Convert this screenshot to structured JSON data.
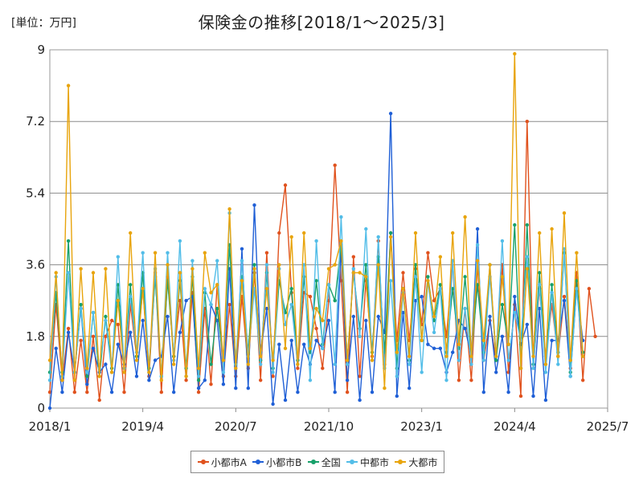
{
  "chart_data": {
    "type": "line",
    "title": "保険金の推移[2018/1～2025/3]",
    "unit_label": "[単位：万円]",
    "xlabel": "",
    "ylabel": "",
    "ylim": [
      0,
      9
    ],
    "y_ticks": [
      "0",
      "1.8",
      "3.6",
      "5.4",
      "7.2",
      "9"
    ],
    "y_tick_values": [
      0,
      1.8,
      3.6,
      5.4,
      7.2,
      9
    ],
    "x_ticks": [
      "2018/1",
      "2019/4",
      "2020/7",
      "2021/10",
      "2023/1",
      "2024/4",
      "2025/7"
    ],
    "x_tick_months": [
      0,
      15,
      30,
      45,
      60,
      75,
      90
    ],
    "x_months": [
      0,
      1,
      2,
      3,
      4,
      5,
      6,
      7,
      8,
      9,
      10,
      11,
      12,
      13,
      14,
      15,
      16,
      17,
      18,
      19,
      20,
      21,
      22,
      23,
      24,
      25,
      26,
      27,
      28,
      29,
      30,
      31,
      32,
      33,
      34,
      35,
      36,
      37,
      38,
      39,
      40,
      41,
      42,
      43,
      44,
      45,
      46,
      47,
      48,
      49,
      50,
      51,
      52,
      53,
      54,
      55,
      56,
      57,
      58,
      59,
      60,
      61,
      62,
      63,
      64,
      65,
      66,
      67,
      68,
      69,
      70,
      71,
      72,
      73,
      74,
      75,
      76,
      77,
      78,
      79,
      80,
      81,
      82,
      83,
      84,
      85,
      86,
      87,
      88
    ],
    "grid": true,
    "legend_position": "bottom",
    "series": [
      {
        "name": "小都市A",
        "color": "#e0521e",
        "values": [
          0.4,
          2.6,
          0.7,
          2.0,
          0.4,
          1.7,
          0.4,
          1.8,
          0.2,
          1.8,
          2.2,
          2.1,
          0.4,
          2.6,
          1.3,
          3.0,
          0.8,
          3.4,
          0.4,
          3.3,
          1.3,
          2.7,
          0.7,
          2.9,
          0.4,
          2.5,
          0.6,
          3.1,
          0.8,
          2.6,
          0.8,
          2.8,
          1.0,
          3.4,
          0.7,
          3.9,
          0.8,
          4.4,
          5.6,
          2.9,
          1.0,
          2.9,
          2.8,
          2.0,
          1.0,
          2.7,
          6.1,
          3.2,
          0.4,
          3.8,
          0.8,
          3.2,
          1.3,
          4.2,
          1.1,
          4.4,
          1.7,
          3.4,
          1.7,
          3.5,
          2.1,
          3.9,
          2.7,
          3.0,
          1.8,
          3.7,
          0.7,
          2.5,
          0.7,
          3.6,
          1.2,
          2.2,
          1.2,
          3.6,
          0.9,
          2.6,
          0.3,
          7.2,
          1.0,
          3.0,
          1.3,
          2.6,
          1.3,
          2.8,
          1.0,
          3.4,
          0.7,
          3.0,
          1.8
        ]
      },
      {
        "name": "小都市B",
        "color": "#1f5fd6",
        "values": [
          0.0,
          1.5,
          0.4,
          1.9,
          0.9,
          2.5,
          0.6,
          1.5,
          0.9,
          1.1,
          0.4,
          1.6,
          1.1,
          1.9,
          0.8,
          2.2,
          0.7,
          1.2,
          1.3,
          2.3,
          0.4,
          1.9,
          2.7,
          2.8,
          0.5,
          0.7,
          2.6,
          2.2,
          0.6,
          3.5,
          0.5,
          4.0,
          0.5,
          5.1,
          1.4,
          2.5,
          0.1,
          1.6,
          0.2,
          1.7,
          0.4,
          1.6,
          1.1,
          1.7,
          1.5,
          2.2,
          0.4,
          4.0,
          0.7,
          2.3,
          0.2,
          2.2,
          0.4,
          2.3,
          1.9,
          7.4,
          0.3,
          2.4,
          0.5,
          2.7,
          2.8,
          1.6,
          1.5,
          1.5,
          0.9,
          1.4,
          2.2,
          2.0,
          1.3,
          4.5,
          0.4,
          2.3,
          0.9,
          1.8,
          0.4,
          2.8,
          1.6,
          2.1,
          0.3,
          2.5,
          0.2,
          1.7,
          1.7,
          2.7,
          0.8,
          3.0,
          1.7
        ]
      },
      {
        "name": "全国",
        "color": "#17a06a",
        "values": [
          0.9,
          2.9,
          0.9,
          4.2,
          0.9,
          2.6,
          0.8,
          2.4,
          0.8,
          2.3,
          1.0,
          3.1,
          1.0,
          3.1,
          1.3,
          3.4,
          1.0,
          3.3,
          0.8,
          3.2,
          1.3,
          3.2,
          1.0,
          3.3,
          0.7,
          2.9,
          1.1,
          2.5,
          1.2,
          4.1,
          1.1,
          3.3,
          1.4,
          3.6,
          1.2,
          3.4,
          1.0,
          3.2,
          2.4,
          3.0,
          1.2,
          3.3,
          1.4,
          3.2,
          1.6,
          3.1,
          2.7,
          4.1,
          1.2,
          3.4,
          2.0,
          3.6,
          1.4,
          3.8,
          1.4,
          4.4,
          1.0,
          3.0,
          1.2,
          3.6,
          1.7,
          3.3,
          2.2,
          3.1,
          1.4,
          3.0,
          1.5,
          3.3,
          1.3,
          3.1,
          1.4,
          3.6,
          1.2,
          2.6,
          1.6,
          4.6,
          1.0,
          4.6,
          1.1,
          3.4,
          1.1,
          3.1,
          1.4,
          3.9,
          0.9,
          3.2,
          1.4
        ]
      },
      {
        "name": "中都市",
        "color": "#52bde8",
        "values": [
          0.7,
          3.3,
          0.8,
          3.4,
          0.9,
          2.5,
          0.9,
          2.4,
          1.0,
          2.2,
          0.9,
          3.8,
          1.0,
          2.8,
          1.4,
          3.9,
          0.9,
          3.5,
          0.8,
          3.9,
          1.2,
          4.2,
          0.8,
          3.7,
          0.8,
          3.0,
          2.6,
          3.7,
          0.9,
          4.9,
          1.1,
          3.7,
          1.3,
          3.0,
          1.1,
          3.6,
          0.9,
          3.5,
          2.1,
          2.6,
          1.1,
          3.6,
          0.7,
          4.2,
          1.5,
          3.1,
          1.1,
          4.8,
          1.1,
          3.5,
          1.8,
          4.5,
          1.2,
          4.3,
          1.0,
          3.2,
          0.8,
          2.9,
          1.1,
          3.3,
          0.9,
          3.2,
          1.9,
          3.0,
          0.7,
          3.7,
          1.2,
          2.5,
          1.1,
          4.1,
          1.2,
          3.3,
          1.3,
          4.2,
          1.2,
          2.4,
          1.7,
          3.8,
          1.0,
          3.1,
          0.9,
          2.9,
          1.1,
          4.0,
          0.8,
          3.0,
          1.3
        ]
      },
      {
        "name": "大都市",
        "color": "#e8a40c",
        "values": [
          1.2,
          3.4,
          0.7,
          8.1,
          0.7,
          3.5,
          1.0,
          3.4,
          0.8,
          3.5,
          0.9,
          2.7,
          0.9,
          4.4,
          1.2,
          3.0,
          0.9,
          3.9,
          0.7,
          3.6,
          1.1,
          3.4,
          0.8,
          3.5,
          1.0,
          3.9,
          2.9,
          3.1,
          1.2,
          5.0,
          1.0,
          3.2,
          1.1,
          3.5,
          1.3,
          3.0,
          1.2,
          3.6,
          1.5,
          4.3,
          1.1,
          4.4,
          1.5,
          2.5,
          2.2,
          3.5,
          3.6,
          4.2,
          1.2,
          3.4,
          3.4,
          3.3,
          1.2,
          3.6,
          0.5,
          4.3,
          1.4,
          3.0,
          1.3,
          4.4,
          1.7,
          3.2,
          2.3,
          3.8,
          1.3,
          4.4,
          1.6,
          4.8,
          1.3,
          3.7,
          1.7,
          3.6,
          1.3,
          3.3,
          1.6,
          8.9,
          1.0,
          3.5,
          1.3,
          4.4,
          1.1,
          4.5,
          1.3,
          4.9,
          1.2,
          3.9,
          1.3
        ]
      }
    ]
  }
}
